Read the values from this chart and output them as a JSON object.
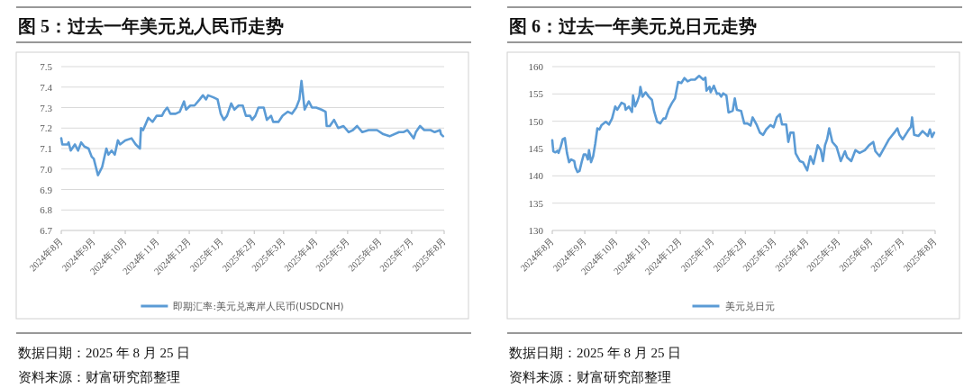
{
  "chart_data": [
    {
      "type": "line",
      "title": "图 5：过去一年美元兑人民币走势",
      "x": [
        "2024-08-26",
        "2024-08-27",
        "2024-09-01",
        "2024-09-02",
        "2024-09-04",
        "2024-09-08",
        "2024-09-11",
        "2024-09-14",
        "2024-09-17",
        "2024-09-21",
        "2024-09-24",
        "2024-09-26",
        "2024-09-28",
        "2024-09-30",
        "2024-10-04",
        "2024-10-08",
        "2024-10-10",
        "2024-10-13",
        "2024-10-16",
        "2024-10-19",
        "2024-10-21",
        "2024-10-26",
        "2024-11-01",
        "2024-11-05",
        "2024-11-09",
        "2024-11-10",
        "2024-11-12",
        "2024-11-17",
        "2024-11-21",
        "2024-11-25",
        "2024-11-30",
        "2024-12-02",
        "2024-12-05",
        "2024-12-08",
        "2024-12-13",
        "2024-12-17",
        "2024-12-21",
        "2024-12-23",
        "2024-12-27",
        "2024-12-31",
        "2025-01-05",
        "2025-01-08",
        "2025-01-11",
        "2025-01-13",
        "2025-01-18",
        "2025-01-22",
        "2025-01-25",
        "2025-01-28",
        "2025-01-31",
        "2025-02-04",
        "2025-02-07",
        "2025-02-11",
        "2025-02-15",
        "2025-02-18",
        "2025-02-22",
        "2025-02-24",
        "2025-02-27",
        "2025-03-02",
        "2025-03-07",
        "2025-03-10",
        "2025-03-14",
        "2025-03-16",
        "2025-03-21",
        "2025-03-25",
        "2025-03-30",
        "2025-04-03",
        "2025-04-07",
        "2025-04-10",
        "2025-04-12",
        "2025-04-15",
        "2025-04-19",
        "2025-04-22",
        "2025-04-26",
        "2025-05-01",
        "2025-05-05",
        "2025-05-06",
        "2025-05-09",
        "2025-05-13",
        "2025-05-17",
        "2025-05-22",
        "2025-05-27",
        "2025-05-31",
        "2025-06-04",
        "2025-06-09",
        "2025-06-15",
        "2025-06-23",
        "2025-06-29",
        "2025-07-05",
        "2025-07-14",
        "2025-07-18",
        "2025-07-22",
        "2025-07-28",
        "2025-07-30",
        "2025-08-03",
        "2025-08-07",
        "2025-08-13",
        "2025-08-17",
        "2025-08-22",
        "2025-08-23",
        "2025-08-25"
      ],
      "series": [
        {
          "name": "即期汇率:美元兑离岸人民币(USDCNH)",
          "color": "#5b9bd5",
          "values": [
            7.15,
            7.12,
            7.12,
            7.13,
            7.09,
            7.12,
            7.09,
            7.13,
            7.11,
            7.1,
            7.06,
            7.05,
            7.01,
            6.97,
            7.01,
            7.1,
            7.07,
            7.09,
            7.07,
            7.14,
            7.12,
            7.14,
            7.15,
            7.12,
            7.1,
            7.2,
            7.19,
            7.25,
            7.23,
            7.26,
            7.26,
            7.28,
            7.3,
            7.27,
            7.27,
            7.28,
            7.33,
            7.29,
            7.31,
            7.31,
            7.34,
            7.36,
            7.34,
            7.36,
            7.35,
            7.34,
            7.27,
            7.24,
            7.26,
            7.32,
            7.29,
            7.31,
            7.31,
            7.26,
            7.26,
            7.24,
            7.26,
            7.3,
            7.3,
            7.24,
            7.26,
            7.23,
            7.23,
            7.26,
            7.28,
            7.27,
            7.3,
            7.34,
            7.43,
            7.29,
            7.33,
            7.3,
            7.3,
            7.29,
            7.28,
            7.21,
            7.21,
            7.24,
            7.2,
            7.21,
            7.18,
            7.19,
            7.21,
            7.18,
            7.19,
            7.19,
            7.17,
            7.16,
            7.18,
            7.18,
            7.19,
            7.15,
            7.18,
            7.21,
            7.19,
            7.19,
            7.18,
            7.19,
            7.17,
            7.16
          ]
        }
      ],
      "xlim": [
        "2024-08-26",
        "2025-08-26"
      ],
      "xticks": [
        {
          "value": "2024-08-26",
          "label": "2024年8月"
        },
        {
          "value": "2024-09-26",
          "label": "2024年9月"
        },
        {
          "value": "2024-10-26",
          "label": "2024年10月"
        },
        {
          "value": "2024-11-26",
          "label": "2024年11月"
        },
        {
          "value": "2024-12-26",
          "label": "2024年12月"
        },
        {
          "value": "2025-01-26",
          "label": "2025年1月"
        },
        {
          "value": "2025-02-26",
          "label": "2025年2月"
        },
        {
          "value": "2025-03-26",
          "label": "2025年3月"
        },
        {
          "value": "2025-04-26",
          "label": "2025年4月"
        },
        {
          "value": "2025-05-26",
          "label": "2025年5月"
        },
        {
          "value": "2025-06-26",
          "label": "2025年6月"
        },
        {
          "value": "2025-07-26",
          "label": "2025年7月"
        },
        {
          "value": "2025-08-26",
          "label": "2025年8月"
        }
      ],
      "ylim": [
        6.7,
        7.5
      ],
      "yticks": [
        6.7,
        6.8,
        6.9,
        {
          "value": 7,
          "label": "7.0"
        },
        7.1,
        7.2,
        7.3,
        7.4,
        7.5
      ],
      "grid": "y",
      "legend": "bottom",
      "annotations": [
        "数据日期：2025 年 8 月 25 日",
        "资料来源：财富研究部整理"
      ]
    },
    {
      "type": "line",
      "title": "图 6：过去一年美元兑日元走势",
      "x": [
        "2024-08-26",
        "2024-08-27",
        "2024-08-29",
        "2024-08-31",
        "2024-09-01",
        "2024-09-03",
        "2024-09-05",
        "2024-09-07",
        "2024-09-09",
        "2024-09-11",
        "2024-09-13",
        "2024-09-16",
        "2024-09-17",
        "2024-09-19",
        "2024-09-21",
        "2024-09-23",
        "2024-09-25",
        "2024-09-27",
        "2024-09-29",
        "2024-09-30",
        "2024-10-02",
        "2024-10-04",
        "2024-10-06",
        "2024-10-08",
        "2024-10-10",
        "2024-10-12",
        "2024-10-16",
        "2024-10-19",
        "2024-10-22",
        "2024-10-25",
        "2024-10-27",
        "2024-10-31",
        "2024-11-03",
        "2024-11-04",
        "2024-11-07",
        "2024-11-10",
        "2024-11-11",
        "2024-11-13",
        "2024-11-15",
        "2024-11-17",
        "2024-11-18",
        "2024-11-20",
        "2024-11-23",
        "2024-11-26",
        "2024-11-29",
        "2024-12-01",
        "2024-12-04",
        "2024-12-07",
        "2024-12-10",
        "2024-12-12",
        "2024-12-15",
        "2024-12-18",
        "2024-12-21",
        "2024-12-24",
        "2024-12-27",
        "2024-12-30",
        "2025-01-02",
        "2025-01-05",
        "2025-01-09",
        "2025-01-13",
        "2025-01-17",
        "2025-01-19",
        "2025-01-20",
        "2025-01-23",
        "2025-01-24",
        "2025-01-27",
        "2025-01-30",
        "2025-02-01",
        "2025-02-03",
        "2025-02-05",
        "2025-02-08",
        "2025-02-10",
        "2025-02-14",
        "2025-02-16",
        "2025-02-18",
        "2025-02-22",
        "2025-02-25",
        "2025-02-28",
        "2025-03-03",
        "2025-03-05",
        "2025-03-09",
        "2025-03-12",
        "2025-03-15",
        "2025-03-18",
        "2025-03-22",
        "2025-03-25",
        "2025-03-28",
        "2025-03-31",
        "2025-04-02",
        "2025-04-06",
        "2025-04-08",
        "2025-04-10",
        "2025-04-13",
        "2025-04-15",
        "2025-04-19",
        "2025-04-22",
        "2025-04-26",
        "2025-04-29",
        "2025-05-02",
        "2025-05-06",
        "2025-05-09",
        "2025-05-11",
        "2025-05-13",
        "2025-05-15",
        "2025-05-17",
        "2025-05-20",
        "2025-05-24",
        "2025-05-28",
        "2025-06-01",
        "2025-06-03",
        "2025-06-07",
        "2025-06-11",
        "2025-06-15",
        "2025-06-20",
        "2025-06-24",
        "2025-06-28",
        "2025-06-30",
        "2025-07-04",
        "2025-07-09",
        "2025-07-13",
        "2025-07-18",
        "2025-07-21",
        "2025-07-23",
        "2025-07-26",
        "2025-07-31",
        "2025-08-03",
        "2025-08-04",
        "2025-08-06",
        "2025-08-10",
        "2025-08-14",
        "2025-08-19",
        "2025-08-21",
        "2025-08-23",
        "2025-08-25"
      ],
      "series": [
        {
          "name": "美元兑日元",
          "color": "#5b9bd5",
          "values": [
            146.5,
            144.5,
            144.3,
            144.6,
            144.2,
            145.3,
            146.7,
            146.9,
            144.2,
            142.5,
            143.0,
            142.7,
            141.6,
            140.7,
            140.9,
            142.5,
            143.9,
            143.9,
            143.0,
            144.7,
            142.5,
            143.6,
            145.9,
            148.7,
            148.5,
            149.3,
            149.9,
            149.4,
            150.5,
            152.7,
            152.1,
            153.4,
            153.1,
            152.1,
            152.7,
            151.7,
            154.7,
            152.7,
            153.6,
            154.7,
            156.3,
            154.5,
            155.3,
            154.5,
            153.9,
            151.9,
            149.9,
            149.6,
            150.5,
            150.5,
            152.2,
            153.3,
            154.2,
            157.2,
            157.0,
            157.9,
            157.3,
            157.6,
            157.6,
            158.3,
            157.6,
            158.0,
            155.6,
            156.3,
            155.3,
            156.5,
            155.0,
            155.1,
            154.5,
            155.1,
            154.7,
            151.6,
            151.9,
            154.2,
            152.1,
            151.9,
            149.6,
            149.6,
            149.2,
            150.7,
            149.3,
            147.9,
            147.5,
            148.5,
            149.3,
            148.9,
            150.7,
            151.3,
            149.4,
            149.4,
            146.2,
            147.9,
            147.9,
            144.1,
            142.7,
            142.5,
            141.0,
            143.6,
            142.2,
            145.6,
            144.7,
            142.7,
            145.6,
            146.7,
            148.7,
            146.2,
            145.3,
            142.7,
            144.5,
            143.4,
            142.7,
            144.7,
            144.2,
            144.7,
            145.6,
            146.2,
            144.5,
            143.6,
            145.3,
            146.7,
            147.9,
            148.7,
            147.5,
            146.7,
            148.2,
            149.0,
            150.7,
            147.5,
            147.3,
            148.2,
            147.3,
            148.5,
            147.1,
            147.9
          ]
        }
      ],
      "xlim": [
        "2024-08-26",
        "2025-08-26"
      ],
      "xticks": [
        {
          "value": "2024-08-26",
          "label": "2024年8月"
        },
        {
          "value": "2024-09-26",
          "label": "2024年9月"
        },
        {
          "value": "2024-10-26",
          "label": "2024年10月"
        },
        {
          "value": "2024-11-26",
          "label": "2024年11月"
        },
        {
          "value": "2024-12-26",
          "label": "2024年12月"
        },
        {
          "value": "2025-01-26",
          "label": "2025年1月"
        },
        {
          "value": "2025-02-26",
          "label": "2025年2月"
        },
        {
          "value": "2025-03-26",
          "label": "2025年3月"
        },
        {
          "value": "2025-04-26",
          "label": "2025年4月"
        },
        {
          "value": "2025-05-26",
          "label": "2025年5月"
        },
        {
          "value": "2025-06-26",
          "label": "2025年6月"
        },
        {
          "value": "2025-07-26",
          "label": "2025年7月"
        },
        {
          "value": "2025-08-26",
          "label": "2025年8月"
        }
      ],
      "ylim": [
        130,
        160
      ],
      "yticks": [
        130,
        135,
        140,
        145,
        150,
        155,
        160
      ],
      "grid": "y",
      "legend": "bottom",
      "annotations": [
        "数据日期：2025 年 8 月 25 日",
        "资料来源：财富研究部整理"
      ]
    }
  ]
}
